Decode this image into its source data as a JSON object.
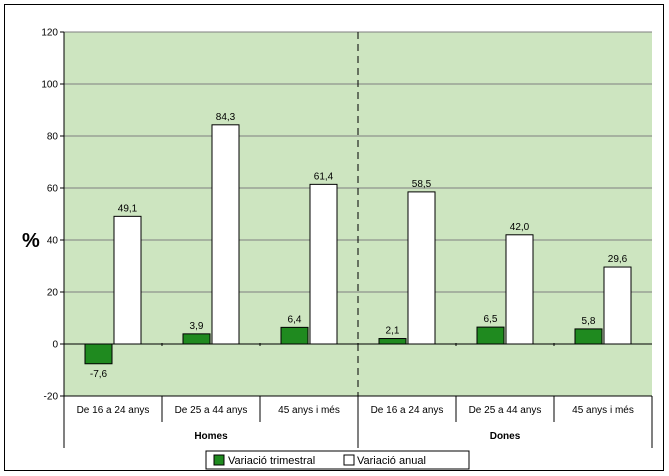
{
  "chart_data": {
    "type": "bar",
    "ylabel": "%",
    "ylim": [
      -20,
      120
    ],
    "yticks": [
      -20,
      0,
      20,
      40,
      60,
      80,
      100,
      120
    ],
    "grid": true,
    "legend_position": "bottom",
    "groups": [
      "Homes",
      "Dones"
    ],
    "categories": [
      "De 16 a 24 anys",
      "De 25 a 44 anys",
      "45 anys i més",
      "De 16 a 24 anys",
      "De 25 a 44 anys",
      "45 anys i més"
    ],
    "series": [
      {
        "name": "Variació trimestral",
        "values": [
          -7.6,
          3.9,
          6.4,
          2.1,
          6.5,
          5.8
        ],
        "labels": [
          "-7,6",
          "3,9",
          "6,4",
          "2,1",
          "6,5",
          "5,8"
        ],
        "color": "#1f8a1f"
      },
      {
        "name": "Variació anual",
        "values": [
          49.1,
          84.3,
          61.4,
          58.5,
          42.0,
          29.6
        ],
        "labels": [
          "49,1",
          "84,3",
          "61,4",
          "58,5",
          "42,0",
          "29,6"
        ],
        "color": "#ffffff"
      }
    ],
    "plot_background": "#cde5c0"
  }
}
